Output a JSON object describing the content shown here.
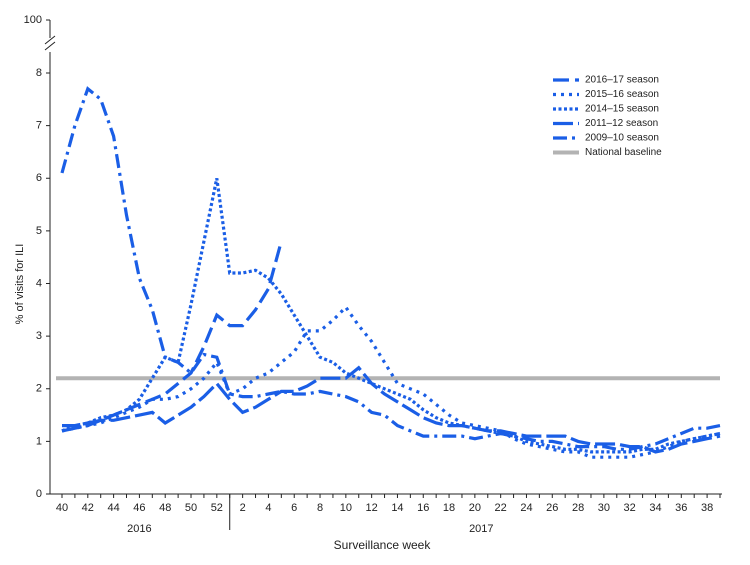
{
  "chart_data": {
    "type": "line",
    "x_label": "Surveillance week",
    "y_label": "% of visits for ILI",
    "categories": [
      40,
      null,
      42,
      null,
      44,
      null,
      46,
      null,
      48,
      null,
      50,
      null,
      52,
      null,
      2,
      null,
      4,
      null,
      6,
      null,
      8,
      null,
      10,
      null,
      12,
      null,
      14,
      null,
      16,
      null,
      18,
      null,
      20,
      null,
      22,
      null,
      24,
      null,
      26,
      null,
      28,
      null,
      30,
      null,
      32,
      null,
      34,
      null,
      36,
      null,
      38,
      null
    ],
    "years": [
      "2016",
      "2017"
    ],
    "ylim": [
      0,
      100
    ],
    "y_break": [
      8,
      100
    ],
    "yticks": [
      0,
      1,
      2,
      3,
      4,
      5,
      6,
      7,
      8,
      100
    ],
    "legend": "upper right",
    "series": [
      {
        "name": "2016–17 season",
        "color": "#1a5ee6",
        "dash": "16,6",
        "values": [
          1.3,
          1.3,
          1.35,
          1.4,
          1.5,
          1.6,
          1.7,
          1.8,
          1.9,
          2.1,
          2.3,
          2.8,
          3.4,
          3.2,
          3.2,
          3.5,
          3.9,
          4.8,
          null,
          null,
          null,
          null,
          null,
          null,
          null,
          null,
          null,
          null,
          null,
          null,
          null,
          null,
          null,
          null,
          null,
          null,
          null,
          null,
          null,
          null,
          null,
          null,
          null,
          null,
          null,
          null,
          null,
          null,
          null,
          null,
          null,
          null
        ]
      },
      {
        "name": "2015–16 season",
        "color": "#1a5ee6",
        "dash": "3,5",
        "values": [
          1.2,
          1.25,
          1.3,
          1.35,
          1.45,
          1.55,
          1.65,
          1.8,
          1.8,
          1.85,
          2.0,
          2.2,
          2.5,
          1.9,
          2.0,
          2.2,
          2.3,
          2.5,
          2.7,
          3.1,
          3.1,
          3.3,
          3.55,
          3.2,
          2.9,
          2.5,
          2.1,
          2.0,
          1.9,
          1.7,
          1.5,
          1.35,
          1.3,
          1.25,
          1.2,
          1.05,
          0.95,
          0.9,
          0.85,
          0.8,
          0.8,
          0.7,
          0.7,
          0.7,
          0.7,
          0.75,
          0.8,
          0.9,
          1.0,
          1.05,
          1.1,
          1.15
        ]
      },
      {
        "name": "2014–15 season",
        "color": "#1a5ee6",
        "dash": "3,2.5",
        "values": [
          1.2,
          1.3,
          1.35,
          1.45,
          1.5,
          1.6,
          1.8,
          2.2,
          2.6,
          2.5,
          3.6,
          4.8,
          6.0,
          4.2,
          4.2,
          4.25,
          4.1,
          3.8,
          3.4,
          3.0,
          2.6,
          2.5,
          2.3,
          2.2,
          2.1,
          2.0,
          1.9,
          1.8,
          1.6,
          1.45,
          1.35,
          1.3,
          1.25,
          1.2,
          1.15,
          1.1,
          1.0,
          0.95,
          0.9,
          0.85,
          0.85,
          0.8,
          0.8,
          0.8,
          0.8,
          0.85,
          0.85,
          0.95,
          1.0,
          1.05,
          1.1,
          1.15
        ]
      },
      {
        "name": "2011–12 season",
        "color": "#1a5ee6",
        "dash": "20,5",
        "values": [
          1.2,
          1.25,
          1.3,
          1.4,
          1.4,
          1.45,
          1.5,
          1.55,
          1.35,
          1.5,
          1.65,
          1.85,
          2.1,
          1.8,
          1.55,
          1.65,
          1.8,
          1.95,
          1.95,
          2.05,
          2.2,
          2.2,
          2.2,
          2.4,
          2.1,
          1.9,
          1.75,
          1.6,
          1.45,
          1.35,
          1.3,
          1.3,
          1.25,
          1.2,
          1.2,
          1.15,
          1.1,
          1.1,
          1.1,
          1.1,
          1.0,
          0.95,
          0.95,
          0.95,
          0.9,
          0.9,
          0.8,
          0.85,
          0.95,
          1.0,
          1.05,
          1.1
        ]
      },
      {
        "name": "2009–10 season",
        "color": "#1a5ee6",
        "dash": "14,5,3,5",
        "values": [
          6.1,
          7.0,
          7.7,
          7.5,
          6.8,
          5.3,
          4.1,
          3.5,
          2.6,
          2.5,
          2.3,
          2.65,
          2.6,
          1.9,
          1.85,
          1.85,
          1.9,
          1.95,
          1.9,
          1.9,
          1.95,
          1.9,
          1.85,
          1.75,
          1.55,
          1.5,
          1.3,
          1.2,
          1.1,
          1.1,
          1.1,
          1.1,
          1.05,
          1.1,
          1.15,
          1.1,
          1.05,
          1.0,
          1.0,
          0.95,
          0.9,
          0.9,
          0.9,
          0.85,
          0.85,
          0.9,
          0.95,
          1.05,
          1.15,
          1.25,
          1.25,
          1.3
        ]
      }
    ],
    "baseline": {
      "name": "National baseline",
      "value": 2.2,
      "color": "#b3b3b3"
    }
  }
}
